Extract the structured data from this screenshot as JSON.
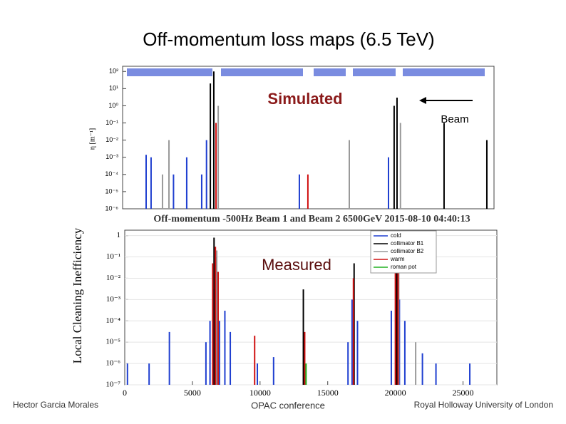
{
  "title": "Off-momentum loss maps (6.5 TeV)",
  "footer": {
    "left": "Hector Garcia Morales",
    "center": "OPAC conference",
    "right": "Royal Holloway University of London"
  },
  "chart_data": [
    {
      "type": "bar",
      "label": "Simulated",
      "annotation": "Beam",
      "y_label": "η [m⁻¹]",
      "caption": "Off-momentum -500Hz Beam 1 and Beam 2 6500GeV 2015-08-10 04:40:13",
      "log_y": true,
      "xlim": [
        0,
        27000
      ],
      "ylim": [
        1e-06,
        200
      ],
      "yticks": [
        {
          "value": 100,
          "label": "10²"
        },
        {
          "value": 10,
          "label": "10¹"
        },
        {
          "value": 1,
          "label": "10⁰"
        },
        {
          "value": 0.1,
          "label": "10⁻¹"
        },
        {
          "value": 0.01,
          "label": "10⁻²"
        },
        {
          "value": 0.001,
          "label": "10⁻³"
        },
        {
          "value": 0.0001,
          "label": "10⁻⁴"
        },
        {
          "value": 1e-05,
          "label": "10⁻⁵"
        },
        {
          "value": 1e-06,
          "label": "10⁻⁶"
        }
      ],
      "series": [
        {
          "color": "#1f3fd0",
          "s": [
            1710,
            2070,
            3700,
            4660,
            5750,
            6100,
            12850,
            19330
          ],
          "values": [
            0.0014,
            0.001,
            0.0001,
            0.001,
            0.0001,
            0.01,
            0.0001,
            0.001
          ]
        },
        {
          "color": "#999999",
          "s": [
            2900,
            3370,
            6950,
            16480,
            20200
          ],
          "values": [
            0.0001,
            0.01,
            1,
            0.01,
            0.1
          ]
        },
        {
          "color": "#000000",
          "s": [
            6380,
            6630,
            19740,
            19950,
            23370,
            26480
          ],
          "values": [
            20,
            100,
            1,
            3,
            0.1,
            0.01
          ]
        },
        {
          "color": "#d01010",
          "s": [
            6790,
            13470
          ],
          "values": [
            0.1,
            0.0001
          ]
        }
      ]
    },
    {
      "type": "bar",
      "label": "Measured",
      "y_label": "Local Cleaning Inefficiency",
      "log_y": true,
      "xlim": [
        0,
        27500
      ],
      "ylim": [
        1e-07,
        1.8
      ],
      "xticks": [
        0,
        5000,
        10000,
        15000,
        20000,
        25000
      ],
      "yticks": [
        1,
        {
          "value": 0.1,
          "label": "10⁻¹"
        },
        {
          "value": 0.01,
          "label": "10⁻²"
        },
        {
          "value": 0.001,
          "label": "10⁻³"
        },
        {
          "value": 0.0001,
          "label": "10⁻⁴"
        },
        {
          "value": 1e-05,
          "label": "10⁻⁵"
        },
        {
          "value": 1e-06,
          "label": "10⁻⁶"
        },
        {
          "value": 1e-07,
          "label": "10⁻⁷"
        }
      ],
      "grid": true,
      "legend": "top-right",
      "series": [
        {
          "name": "cold",
          "color": "#1f3fd0",
          "s": [
            200,
            1800,
            3300,
            6000,
            6300,
            6600,
            7000,
            7400,
            7800,
            9800,
            11000,
            16500,
            16800,
            17200,
            19700,
            20300,
            20700,
            22000,
            23000,
            25500
          ],
          "values": [
            1e-06,
            1e-06,
            3e-05,
            1e-05,
            0.0001,
            0.003,
            0.0001,
            0.0003,
            3e-05,
            1e-06,
            2e-06,
            1e-05,
            0.001,
            0.0001,
            0.0003,
            0.001,
            0.0001,
            3e-06,
            1e-06,
            1e-06
          ]
        },
        {
          "name": "collimator B1",
          "color": "#000000",
          "s": [
            6600,
            6750,
            13200,
            16950,
            20100
          ],
          "values": [
            0.8,
            0.1,
            0.003,
            0.05,
            0.4
          ]
        },
        {
          "name": "collimator B2",
          "color": "#999999",
          "s": [
            6800,
            20250,
            21500
          ],
          "values": [
            0.2,
            0.2,
            1e-05
          ]
        },
        {
          "name": "warm",
          "color": "#d01010",
          "s": [
            6500,
            6700,
            6900,
            9600,
            13300,
            16900,
            20000,
            20200
          ],
          "values": [
            0.05,
            0.3,
            0.02,
            2e-05,
            3e-05,
            0.01,
            0.3,
            0.05
          ]
        },
        {
          "name": "roman pot",
          "color": "#20b020",
          "s": [
            13400
          ],
          "values": [
            1e-06
          ]
        }
      ]
    }
  ]
}
